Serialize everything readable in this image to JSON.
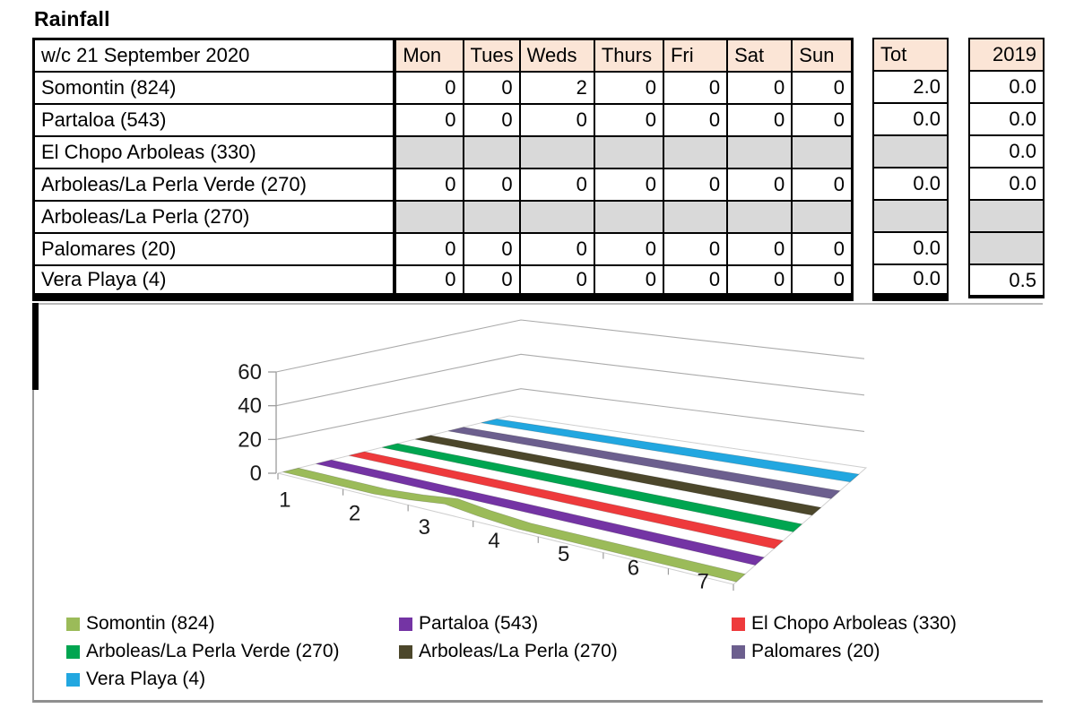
{
  "title": "Rainfall",
  "table": {
    "week_label": "w/c 21 September  2020",
    "day_headers": [
      "Mon",
      "Tues",
      "Weds",
      "Thurs",
      "Fri",
      "Sat",
      "Sun"
    ],
    "tot_header": "Tot",
    "year_header": "2019",
    "rows": [
      {
        "name": "Somontin (824)",
        "days": [
          0,
          0,
          2,
          0,
          0,
          0,
          0
        ],
        "tot": "2.0",
        "prev": "0.0"
      },
      {
        "name": "Partaloa (543)",
        "days": [
          0,
          0,
          0,
          0,
          0,
          0,
          0
        ],
        "tot": "0.0",
        "prev": "0.0"
      },
      {
        "name": "El Chopo Arboleas (330)",
        "days": [
          null,
          null,
          null,
          null,
          null,
          null,
          null
        ],
        "tot": null,
        "prev": "0.0"
      },
      {
        "name": "Arboleas/La Perla Verde (270)",
        "days": [
          0,
          0,
          0,
          0,
          0,
          0,
          0
        ],
        "tot": "0.0",
        "prev": "0.0"
      },
      {
        "name": "Arboleas/La Perla (270)",
        "days": [
          null,
          null,
          null,
          null,
          null,
          null,
          null
        ],
        "tot": null,
        "prev": null
      },
      {
        "name": "Palomares (20)",
        "days": [
          0,
          0,
          0,
          0,
          0,
          0,
          0
        ],
        "tot": "0.0",
        "prev": null
      },
      {
        "name": "Vera Playa (4)",
        "days": [
          0,
          0,
          0,
          0,
          0,
          0,
          0
        ],
        "tot": "0.0",
        "prev": "0.5"
      }
    ]
  },
  "chart_data": {
    "type": "line",
    "style": "3d-ribbon",
    "x": [
      1,
      2,
      3,
      4,
      5,
      6,
      7
    ],
    "y_ticks": [
      0,
      20,
      40,
      60
    ],
    "ylim": [
      0,
      60
    ],
    "legend_position": "bottom",
    "grid": true,
    "series": [
      {
        "name": "Somontin (824)",
        "color": "#9BBB59",
        "values": [
          0,
          0,
          2,
          0,
          0,
          0,
          0
        ]
      },
      {
        "name": "Partaloa (543)",
        "color": "#7434A4",
        "values": [
          0,
          0,
          0,
          0,
          0,
          0,
          0
        ]
      },
      {
        "name": "El Chopo Arboleas (330)",
        "color": "#EE3A3C",
        "values": [
          0,
          0,
          0,
          0,
          0,
          0,
          0
        ]
      },
      {
        "name": "Arboleas/La Perla Verde (270)",
        "color": "#00A550",
        "values": [
          0,
          0,
          0,
          0,
          0,
          0,
          0
        ]
      },
      {
        "name": "Arboleas/La Perla (270)",
        "color": "#4C472B",
        "values": [
          0,
          0,
          0,
          0,
          0,
          0,
          0
        ]
      },
      {
        "name": "Palomares (20)",
        "color": "#6C5F8E",
        "values": [
          0,
          0,
          0,
          0,
          0,
          0,
          0
        ]
      },
      {
        "name": "Vera Playa (4)",
        "color": "#22A7E0",
        "values": [
          0,
          0,
          0,
          0,
          0,
          0,
          0
        ]
      }
    ]
  },
  "colors": {
    "header_bg": "#FBE5D6",
    "empty_cell": "#D9D9D9",
    "grid_line": "#ABABAB",
    "border": "#000000"
  }
}
